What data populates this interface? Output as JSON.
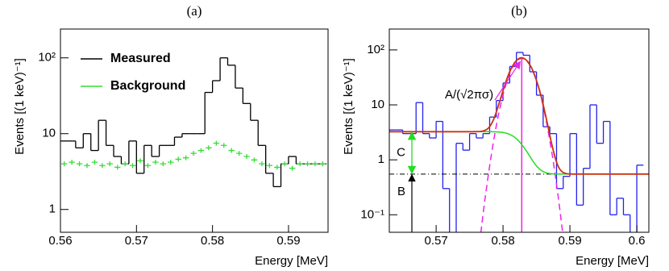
{
  "chart_data": [
    {
      "type": "histogram",
      "title": "(a)",
      "x_label": "Energy [MeV]",
      "y_label": "Events [(1 keV)⁻¹]",
      "log_y": true,
      "legend": "upper left",
      "bins": [
        0.56,
        0.561,
        0.562,
        0.563,
        0.564,
        0.565,
        0.566,
        0.567,
        0.568,
        0.569,
        0.57,
        0.571,
        0.572,
        0.573,
        0.574,
        0.575,
        0.576,
        0.577,
        0.578,
        0.579,
        0.58,
        0.581,
        0.582,
        0.583,
        0.584,
        0.585,
        0.586,
        0.587,
        0.588,
        0.589,
        0.59,
        0.591,
        0.592,
        0.593,
        0.594,
        0.595
      ],
      "series": [
        {
          "name": "Measured",
          "color": "#000000",
          "style": "step",
          "values": [
            8,
            8,
            6.5,
            10,
            6,
            15,
            7,
            5,
            4,
            8,
            3,
            7,
            5,
            7,
            7,
            9,
            10,
            10,
            10,
            35,
            50,
            100,
            80,
            40,
            25,
            15,
            7,
            3,
            2,
            4,
            5,
            4,
            4,
            4,
            4
          ]
        },
        {
          "name": "Background",
          "color": "#33dd33",
          "style": "cross",
          "values": [
            4,
            4.2,
            4,
            3.8,
            4.2,
            3.8,
            4,
            3.6,
            4,
            3.8,
            4.4,
            3.8,
            4.2,
            4,
            4.2,
            4.6,
            4.8,
            5.5,
            6,
            6.5,
            7.5,
            7,
            6,
            5.5,
            5,
            4.5,
            4,
            3.8,
            3.6,
            4,
            3.5,
            4,
            4,
            4,
            4
          ]
        }
      ],
      "xlim": [
        0.56,
        0.5952
      ],
      "xticks": [
        0.56,
        0.57,
        0.58,
        0.59
      ],
      "ylim": [
        0.5,
        240
      ],
      "yticks": [
        1,
        10,
        {
          "value": 100,
          "label": "10²"
        }
      ]
    },
    {
      "type": "histogram",
      "title": "(b)",
      "x_label": "Energy [MeV]",
      "y_label": "Events [(1 keV)⁻¹]",
      "log_y": true,
      "bins": [
        0.563,
        0.564,
        0.565,
        0.566,
        0.567,
        0.568,
        0.569,
        0.57,
        0.571,
        0.572,
        0.573,
        0.574,
        0.575,
        0.576,
        0.577,
        0.578,
        0.579,
        0.58,
        0.581,
        0.582,
        0.583,
        0.584,
        0.585,
        0.586,
        0.587,
        0.588,
        0.589,
        0.59,
        0.591,
        0.592,
        0.593,
        0.594,
        0.595,
        0.596,
        0.597,
        0.598,
        0.599,
        0.6,
        0.601
      ],
      "series": [
        {
          "color": "#2222ee",
          "style": "step",
          "values": [
            3.5,
            3.5,
            3,
            3,
            11,
            3,
            2.5,
            5,
            0.3,
            0,
            2,
            1.5,
            3,
            2.5,
            3,
            6,
            12,
            25,
            50,
            90,
            80,
            40,
            15,
            4,
            3,
            0.3,
            0.5,
            3,
            0.15,
            0.7,
            10,
            2,
            5,
            0.1,
            0.2,
            0.1,
            0,
            0.8
          ]
        }
      ],
      "fit": {
        "peak": 70,
        "mean": 0.5828,
        "sigma": 0.0016,
        "C": 2.7,
        "B": 0.55,
        "total_color": "#cc3311",
        "background_color": "#22dd22",
        "signal_color": "#ee22ee"
      },
      "annotations": {
        "peak_label": "A/(√2πσ)",
        "C_label": "C",
        "B_label": "B"
      },
      "xlim": [
        0.563,
        0.6018
      ],
      "xticks": [
        0.57,
        0.58,
        0.59,
        0.6
      ],
      "ylim": [
        0.048,
        240
      ],
      "yticks": [
        {
          "value": 0.1,
          "label": "10⁻¹"
        },
        1,
        10,
        {
          "value": 100,
          "label": "10²"
        }
      ]
    }
  ]
}
